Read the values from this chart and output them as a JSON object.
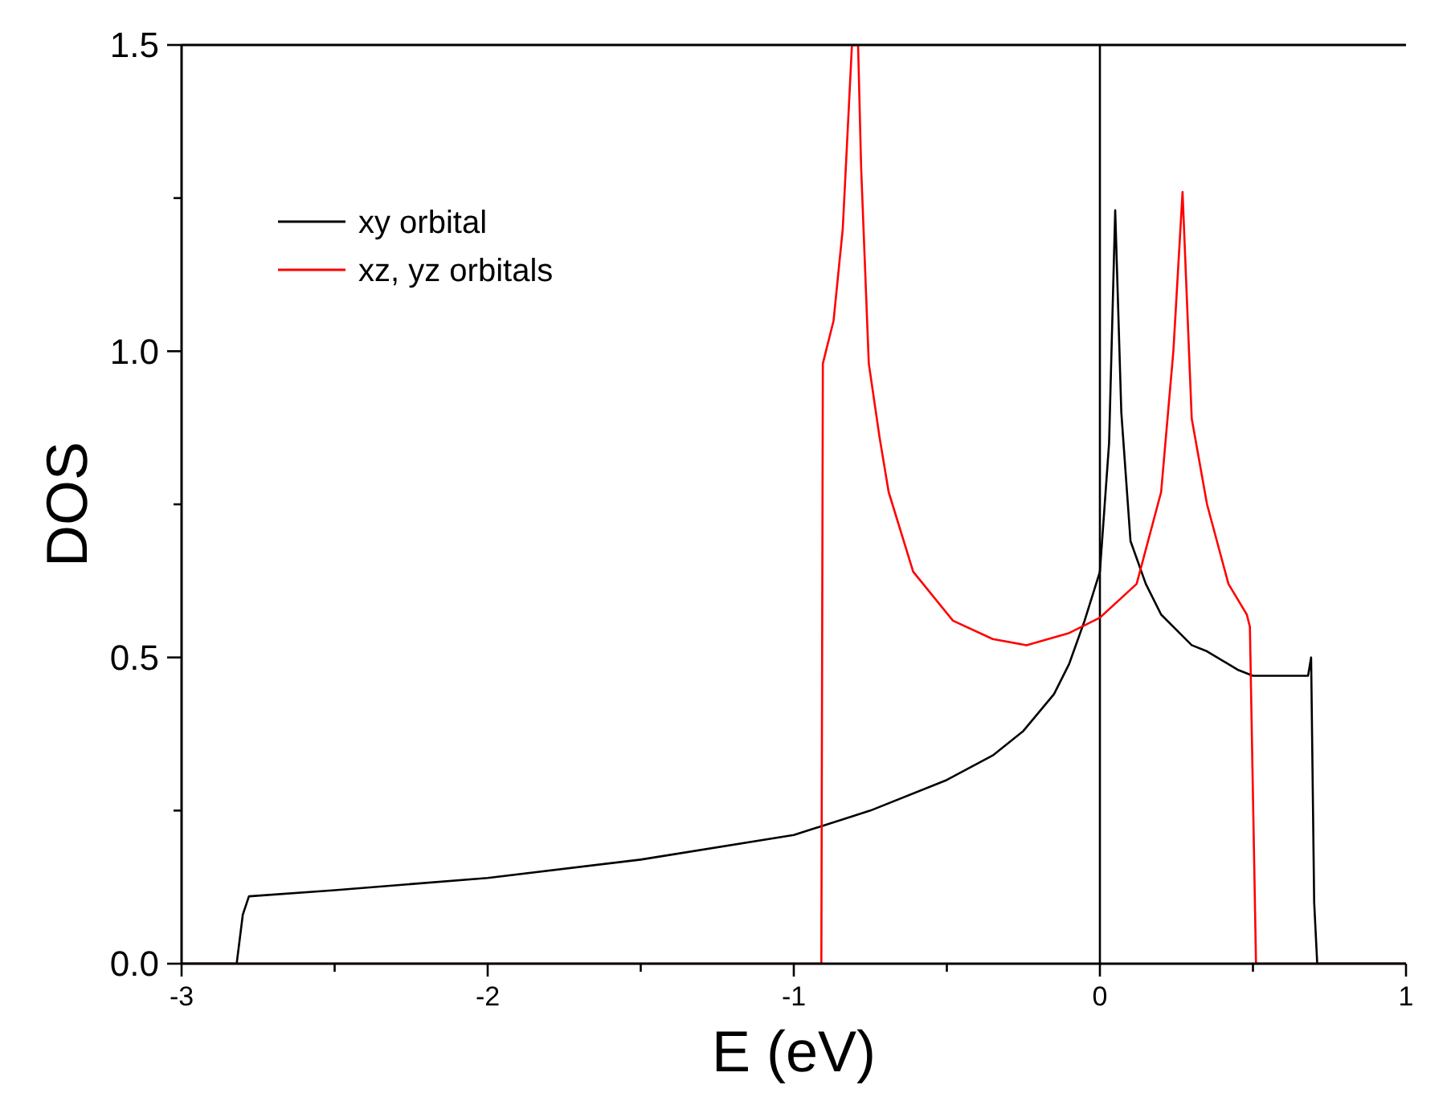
{
  "chart_data": {
    "type": "line",
    "xlabel": "E (eV)",
    "ylabel": "DOS",
    "xlim": [
      -3,
      1
    ],
    "ylim": [
      0,
      1.5
    ],
    "xticks": [
      -3,
      {
        "value": -2.5,
        "label": null
      },
      -2,
      {
        "value": -1.5,
        "label": null
      },
      -1,
      {
        "value": -0.5,
        "label": null
      },
      0,
      {
        "value": 0.5,
        "label": null
      },
      1
    ],
    "yticks": [
      {
        "value": 0,
        "label": "0.0"
      },
      {
        "value": 0.25,
        "label": null
      },
      0.5,
      {
        "value": 0.75,
        "label": null
      },
      {
        "value": 1,
        "label": "1.0"
      },
      {
        "value": 1.25,
        "label": null
      },
      1.5
    ],
    "legend": "top left",
    "marker": "none",
    "line_style": "solid",
    "grid": false,
    "ref_lines": [
      {
        "axis": "x",
        "value": 0,
        "color": "#000000"
      }
    ],
    "series": [
      {
        "name": "xy orbital",
        "color": "#000000",
        "x": [
          -3,
          -2.82,
          -2.8,
          -2.78,
          -2.5,
          -2,
          -1.5,
          -1,
          -0.75,
          -0.5,
          -0.35,
          -0.25,
          -0.15,
          -0.1,
          -0.05,
          0,
          0.03,
          0.05,
          0.07,
          0.1,
          0.15,
          0.2,
          0.3,
          0.35,
          0.45,
          0.5,
          0.6,
          0.68,
          0.69,
          0.7,
          0.71,
          1
        ],
        "values": [
          0,
          0,
          0.08,
          0.11,
          0.12,
          0.14,
          0.17,
          0.21,
          0.25,
          0.3,
          0.34,
          0.38,
          0.44,
          0.49,
          0.56,
          0.64,
          0.85,
          1.23,
          0.9,
          0.69,
          0.62,
          0.57,
          0.52,
          0.51,
          0.48,
          0.47,
          0.47,
          0.47,
          0.5,
          0.1,
          0,
          0
        ]
      },
      {
        "name": "xz, yz orbitals",
        "color": "#ff0000",
        "x": [
          -3,
          -0.91,
          -0.905,
          -0.87,
          -0.84,
          -0.82,
          -0.81,
          -0.79,
          -0.78,
          -0.755,
          -0.72,
          -0.69,
          -0.61,
          -0.48,
          -0.35,
          -0.24,
          -0.1,
          0,
          0.12,
          0.2,
          0.24,
          0.27,
          0.3,
          0.35,
          0.42,
          0.48,
          0.49,
          0.51,
          1
        ],
        "values": [
          0,
          0,
          0.98,
          1.05,
          1.2,
          1.4,
          1.5,
          1.5,
          1.3,
          0.98,
          0.86,
          0.77,
          0.64,
          0.56,
          0.53,
          0.52,
          0.54,
          0.565,
          0.62,
          0.77,
          1.0,
          1.26,
          0.89,
          0.75,
          0.62,
          0.57,
          0.55,
          0,
          0
        ]
      }
    ]
  }
}
